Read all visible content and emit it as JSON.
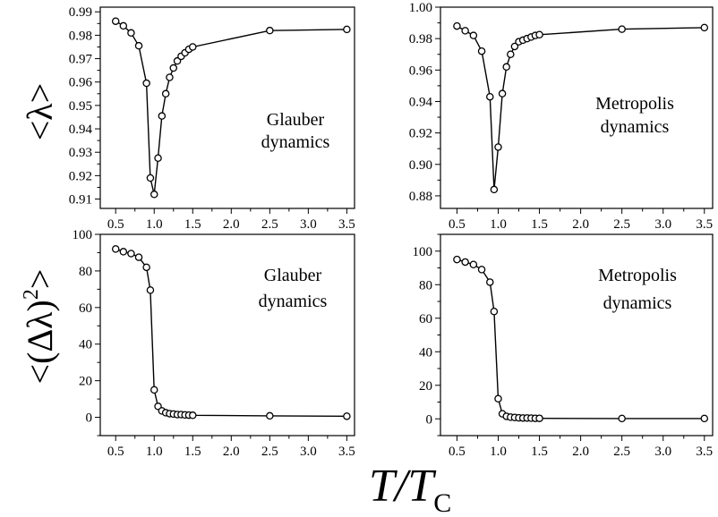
{
  "figure": {
    "ylabel_top": "<λ>",
    "ylabel_bottom_main": "<(Δλ)",
    "ylabel_bottom_sup": "2",
    "ylabel_bottom_end": ">",
    "xlabel_main": "T/T",
    "xlabel_sub": "C"
  },
  "chart_data": [
    {
      "type": "line",
      "panel": "top-left",
      "annotation": [
        "Glauber",
        "dynamics"
      ],
      "xlabel": "",
      "ylabel": "",
      "xlim": [
        0.3,
        3.6
      ],
      "ylim": [
        0.906,
        0.992
      ],
      "xticks": [
        0.5,
        1.0,
        1.5,
        2.0,
        2.5,
        3.0,
        3.5
      ],
      "xtick_labels": [
        "0.5",
        "1.0",
        "1.5",
        "2.0",
        "2.5",
        "3.0",
        "3.5"
      ],
      "yticks": [
        0.91,
        0.92,
        0.93,
        0.94,
        0.95,
        0.96,
        0.97,
        0.98,
        0.99
      ],
      "ytick_labels": [
        "0.91",
        "0.92",
        "0.93",
        "0.94",
        "0.95",
        "0.96",
        "0.97",
        "0.98",
        "0.99"
      ],
      "x": [
        0.5,
        0.6,
        0.7,
        0.8,
        0.9,
        0.95,
        1.0,
        1.05,
        1.1,
        1.15,
        1.2,
        1.25,
        1.3,
        1.35,
        1.4,
        1.45,
        1.5,
        2.5,
        3.5
      ],
      "y": [
        0.986,
        0.984,
        0.981,
        0.9755,
        0.9595,
        0.919,
        0.912,
        0.9275,
        0.9455,
        0.955,
        0.962,
        0.966,
        0.969,
        0.971,
        0.9725,
        0.974,
        0.975,
        0.982,
        0.9825
      ]
    },
    {
      "type": "line",
      "panel": "top-right",
      "annotation": [
        "Metropolis",
        "dynamics"
      ],
      "xlabel": "",
      "ylabel": "",
      "xlim": [
        0.3,
        3.6
      ],
      "ylim": [
        0.872,
        1.0
      ],
      "xticks": [
        0.5,
        1.0,
        1.5,
        2.0,
        2.5,
        3.0,
        3.5
      ],
      "xtick_labels": [
        "0.5",
        "1.0",
        "1.5",
        "2.0",
        "2.5",
        "3.0",
        "3.5"
      ],
      "yticks": [
        0.88,
        0.9,
        0.92,
        0.94,
        0.96,
        0.98,
        1.0
      ],
      "ytick_labels": [
        "0.88",
        "0.90",
        "0.92",
        "0.94",
        "0.96",
        "0.98",
        "1.00"
      ],
      "x": [
        0.5,
        0.6,
        0.7,
        0.8,
        0.9,
        0.95,
        1.0,
        1.05,
        1.1,
        1.15,
        1.2,
        1.25,
        1.3,
        1.35,
        1.4,
        1.45,
        1.5,
        2.5,
        3.5
      ],
      "y": [
        0.988,
        0.985,
        0.982,
        0.972,
        0.943,
        0.884,
        0.911,
        0.945,
        0.962,
        0.97,
        0.975,
        0.978,
        0.979,
        0.98,
        0.981,
        0.982,
        0.9825,
        0.986,
        0.987
      ]
    },
    {
      "type": "line",
      "panel": "bottom-left",
      "annotation": [
        "Glauber",
        "dynamics"
      ],
      "xlabel": "",
      "ylabel": "",
      "xlim": [
        0.3,
        3.6
      ],
      "ylim": [
        -10,
        100
      ],
      "xticks": [
        0.5,
        1.0,
        1.5,
        2.0,
        2.5,
        3.0,
        3.5
      ],
      "xtick_labels": [
        "0.5",
        "1.0",
        "1.5",
        "2.0",
        "2.5",
        "3.0",
        "3.5"
      ],
      "yticks": [
        0,
        20,
        40,
        60,
        80,
        100
      ],
      "ytick_labels": [
        "0",
        "20",
        "40",
        "60",
        "80",
        "100"
      ],
      "x": [
        0.5,
        0.6,
        0.7,
        0.8,
        0.9,
        0.95,
        1.0,
        1.05,
        1.1,
        1.15,
        1.2,
        1.25,
        1.3,
        1.35,
        1.4,
        1.45,
        1.5,
        2.5,
        3.5
      ],
      "y": [
        92,
        90.5,
        89.5,
        87.5,
        82,
        69.5,
        15,
        6,
        3.5,
        2.5,
        2,
        1.8,
        1.5,
        1.5,
        1.3,
        1.2,
        1.1,
        0.8,
        0.6
      ]
    },
    {
      "type": "line",
      "panel": "bottom-right",
      "annotation": [
        "Metropolis",
        "dynamics"
      ],
      "xlabel": "",
      "ylabel": "",
      "xlim": [
        0.3,
        3.6
      ],
      "ylim": [
        -10,
        110
      ],
      "xticks": [
        0.5,
        1.0,
        1.5,
        2.0,
        2.5,
        3.0,
        3.5
      ],
      "xtick_labels": [
        "0.5",
        "1.0",
        "1.5",
        "2.0",
        "2.5",
        "3.0",
        "3.5"
      ],
      "yticks": [
        0,
        20,
        40,
        60,
        80,
        100
      ],
      "ytick_labels": [
        "0",
        "20",
        "40",
        "60",
        "80",
        "100"
      ],
      "x": [
        0.5,
        0.6,
        0.7,
        0.8,
        0.9,
        0.95,
        1.0,
        1.05,
        1.1,
        1.15,
        1.2,
        1.25,
        1.3,
        1.35,
        1.4,
        1.45,
        1.5,
        2.5,
        3.5
      ],
      "y": [
        95,
        93.5,
        92,
        89,
        81.5,
        64,
        12,
        3,
        1.5,
        1,
        0.8,
        0.6,
        0.5,
        0.5,
        0.4,
        0.3,
        0.3,
        0.2,
        0.2
      ]
    }
  ]
}
